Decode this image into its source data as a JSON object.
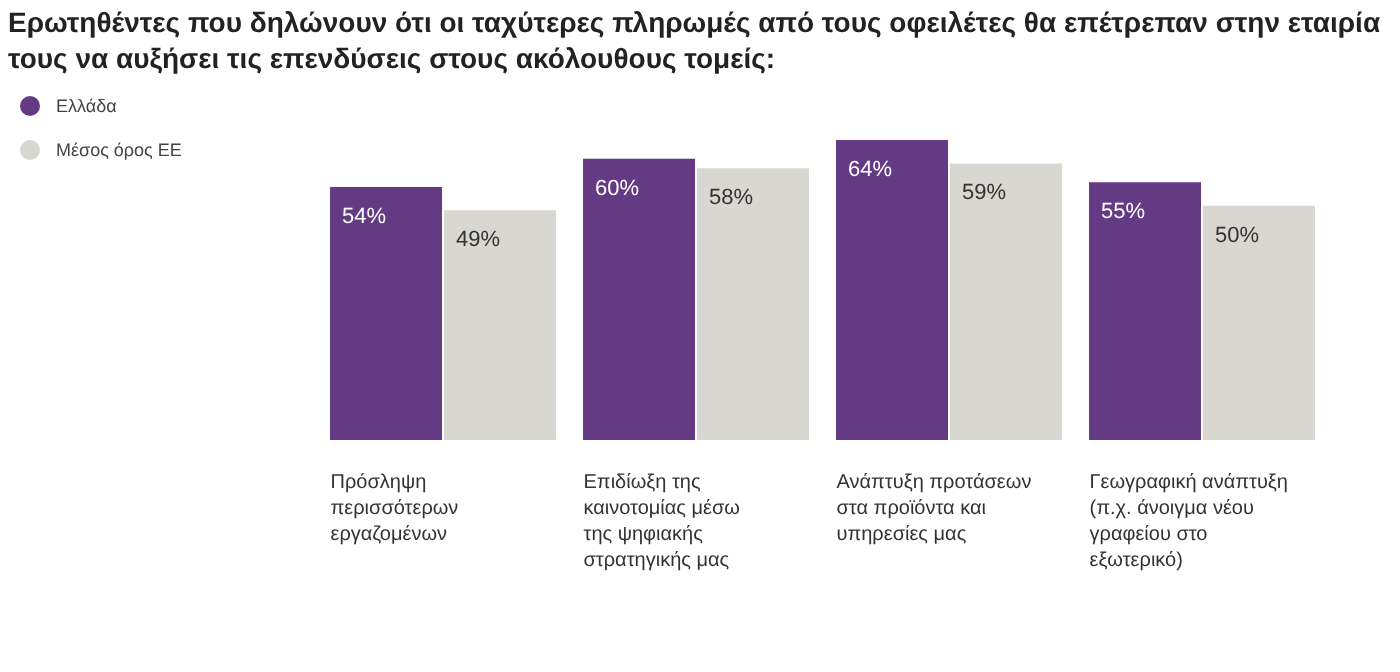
{
  "chart_data": {
    "type": "bar",
    "title": "Ερωτηθέντες που δηλώνουν ότι οι ταχύτερες πληρωμές από τους οφειλέτες θα επέτρεπαν στην εταιρία τους να αυξήσει τις επενδύσεις στους ακόλουθους τομείς:",
    "categories": [
      "Πρόσληψη περισσότερων εργαζομένων",
      "Επιδίωξη της καινοτομίας μέσω της ψηφιακής στρατηγικής μας",
      "Ανάπτυξη προτάσεων στα προϊόντα και υπηρεσίες μας",
      "Γεωγραφική ανάπτυξη (π.χ. άνοιγμα νέου γραφείου στο εξωτερικό)"
    ],
    "series": [
      {
        "name": "Ελλάδα",
        "color": "#643a85",
        "values": [
          54,
          60,
          64,
          55
        ],
        "value_labels": [
          "54%",
          "60%",
          "64%",
          "55%"
        ]
      },
      {
        "name": "Μέσος όρος ΕΕ",
        "color": "#d9d7d2",
        "values": [
          49,
          58,
          59,
          50
        ],
        "value_labels": [
          "49%",
          "58%",
          "59%",
          "50%"
        ]
      }
    ],
    "legend": "top left"
  }
}
